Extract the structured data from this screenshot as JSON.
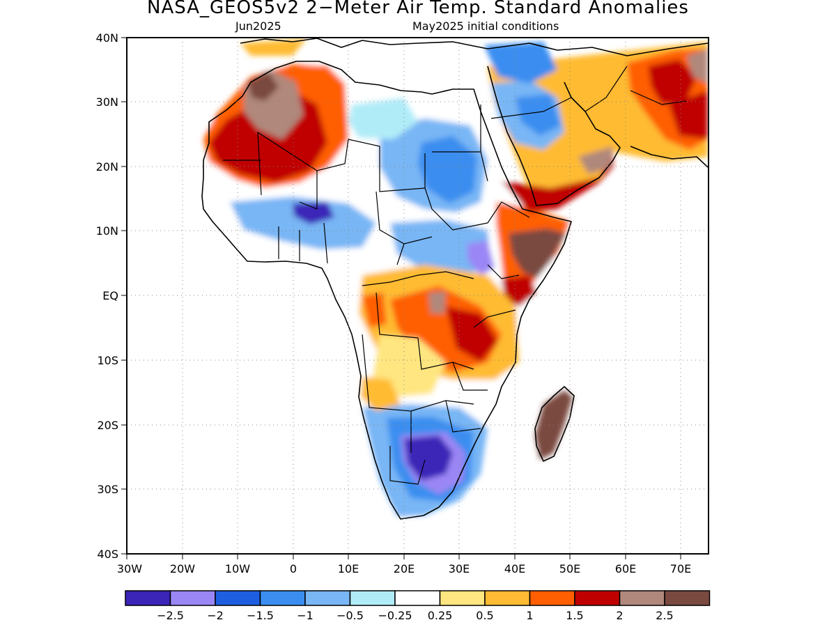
{
  "title": "NASA_GEOS5v2 2−Meter Air Temp. Standard Anomalies",
  "subtitle_left": "Jun2025",
  "subtitle_right": "May2025 initial conditions",
  "map": {
    "lon_range": [
      -30,
      75
    ],
    "lat_range": [
      -40,
      40
    ],
    "lat_labels": [
      "40N",
      "30N",
      "20N",
      "10N",
      "EQ",
      "10S",
      "20S",
      "30S",
      "40S"
    ],
    "lon_labels": [
      "30W",
      "20W",
      "10W",
      "0",
      "10E",
      "20E",
      "30E",
      "40E",
      "50E",
      "60E",
      "70E"
    ],
    "grid": true
  },
  "colorbar": {
    "colors": [
      "#3a25b8",
      "#9b86f5",
      "#1e5ee0",
      "#3b8ef0",
      "#78b6f5",
      "#b0ecf8",
      "#ffffff",
      "#ffe680",
      "#ffbb33",
      "#ff5f00",
      "#c00000",
      "#b0887c",
      "#7a4a40"
    ],
    "labels": [
      "−2.5",
      "−2",
      "−1.5",
      "−1",
      "−0.5",
      "−0.25",
      "0.25",
      "0.5",
      "1",
      "1.5",
      "2",
      "2.5"
    ]
  }
}
